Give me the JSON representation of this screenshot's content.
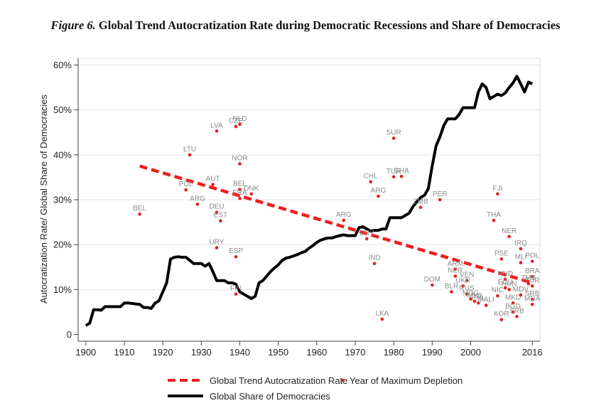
{
  "figure": {
    "number": "Figure 6.",
    "title": "Global Trend Autocratization Rate during Democratic Recessions and Share of Democracies"
  },
  "chart_data": {
    "type": "line",
    "xlabel": "",
    "ylabel": "Autocratization Rate/ Global Share of Democracies",
    "xlim": [
      1898,
      2018
    ],
    "ylim": [
      -1.5,
      61.5
    ],
    "x_ticks": [
      1900,
      1910,
      1920,
      1930,
      1940,
      1950,
      1960,
      1970,
      1980,
      1990,
      2000,
      2016
    ],
    "x_tick_labels": [
      "1900",
      "1910",
      "1920",
      "1930",
      "1940",
      "1950",
      "1960",
      "1970",
      "1980",
      "1990",
      "2000",
      "2016"
    ],
    "y_ticks": [
      0,
      10,
      20,
      30,
      40,
      50,
      60
    ],
    "y_tick_labels": [
      "0",
      "10%",
      "20%",
      "30%",
      "40%",
      "50%",
      "60%"
    ],
    "grid": "horizontal",
    "legend_placement": "bottom",
    "legend": {
      "trend": "Global Trend Autocratization Rate",
      "points": "Year of Maximum Depletion",
      "share": "Global Share of Democracies"
    },
    "colors": {
      "trend": "#ee1d1d",
      "points": "#e02020",
      "share": "#000000",
      "labels": "#8a8a8a"
    },
    "trend": {
      "x": [
        1914,
        2016
      ],
      "y": [
        37.5,
        11.5
      ]
    },
    "share": {
      "x": [
        1900,
        1901,
        1902,
        1903,
        1904,
        1905,
        1906,
        1907,
        1908,
        1909,
        1910,
        1911,
        1912,
        1913,
        1914,
        1915,
        1916,
        1917,
        1918,
        1919,
        1920,
        1921,
        1922,
        1923,
        1924,
        1925,
        1926,
        1927,
        1928,
        1929,
        1930,
        1931,
        1932,
        1933,
        1934,
        1935,
        1936,
        1937,
        1938,
        1939,
        1940,
        1941,
        1942,
        1943,
        1944,
        1945,
        1946,
        1947,
        1948,
        1949,
        1950,
        1951,
        1952,
        1953,
        1954,
        1955,
        1956,
        1957,
        1958,
        1959,
        1960,
        1961,
        1962,
        1963,
        1964,
        1965,
        1966,
        1967,
        1968,
        1969,
        1970,
        1971,
        1972,
        1973,
        1974,
        1975,
        1976,
        1977,
        1978,
        1979,
        1980,
        1981,
        1982,
        1983,
        1984,
        1985,
        1986,
        1987,
        1988,
        1989,
        1990,
        1991,
        1992,
        1993,
        1994,
        1995,
        1996,
        1997,
        1998,
        1999,
        2000,
        2001,
        2002,
        2003,
        2004,
        2005,
        2006,
        2007,
        2008,
        2009,
        2010,
        2011,
        2012,
        2013,
        2014,
        2015,
        2016
      ],
      "y": [
        2,
        2.5,
        5.5,
        5.5,
        5.4,
        6.2,
        6.2,
        6.2,
        6.2,
        6.2,
        7.0,
        7.0,
        6.9,
        6.8,
        6.7,
        6.0,
        6.0,
        5.8,
        7.0,
        7.5,
        9.5,
        11.5,
        16.8,
        17.2,
        17.3,
        17.2,
        17.2,
        16.5,
        15.8,
        15.8,
        15.8,
        15.2,
        15.8,
        14.0,
        12.0,
        12.0,
        12.0,
        11.5,
        11.5,
        11.2,
        9.5,
        9.0,
        8.5,
        8.0,
        8.5,
        11.5,
        12.0,
        13.0,
        14.0,
        14.8,
        15.5,
        16.5,
        17.0,
        17.2,
        17.5,
        17.8,
        18.2,
        18.5,
        19.2,
        19.8,
        20.5,
        21.0,
        21.3,
        21.5,
        21.5,
        21.8,
        22.0,
        22.2,
        22.0,
        22.0,
        22.0,
        23.8,
        24.0,
        23.5,
        23.0,
        23.2,
        23.2,
        23.5,
        23.5,
        26.0,
        26.0,
        26.0,
        26.0,
        26.5,
        27.0,
        28.5,
        29.5,
        30.5,
        31.0,
        32.5,
        37.5,
        42.0,
        44.0,
        46.5,
        48.0,
        48.0,
        48.0,
        49.0,
        50.5,
        50.5,
        50.5,
        50.5,
        54.0,
        55.8,
        55.0,
        52.5,
        53.0,
        53.5,
        53.2,
        53.8,
        55.0,
        56.0,
        57.5,
        55.8,
        54.0,
        56.2,
        55.8
      ]
    },
    "points": [
      {
        "label": "BEL",
        "x": 1914,
        "y": 26.8
      },
      {
        "label": "LTU",
        "x": 1927,
        "y": 40.0
      },
      {
        "label": "POL",
        "x": 1926,
        "y": 32.2
      },
      {
        "label": "ARG",
        "x": 1929,
        "y": 29.0
      },
      {
        "label": "AUT",
        "x": 1933,
        "y": 33.4
      },
      {
        "label": "LVA",
        "x": 1934,
        "y": 45.3
      },
      {
        "label": "DEU",
        "x": 1934,
        "y": 27.2
      },
      {
        "label": "EST",
        "x": 1935,
        "y": 25.3
      },
      {
        "label": "URY",
        "x": 1934,
        "y": 19.3
      },
      {
        "label": "ESP",
        "x": 1939,
        "y": 17.3
      },
      {
        "label": "CZE",
        "x": 1939,
        "y": 46.3
      },
      {
        "label": "NLD",
        "x": 1940,
        "y": 46.8
      },
      {
        "label": "NOR",
        "x": 1940,
        "y": 38.0
      },
      {
        "label": "BEL",
        "x": 1940,
        "y": 32.3
      },
      {
        "label": "FRA",
        "x": 1940,
        "y": 30.3
      },
      {
        "label": "DNK",
        "x": 1943,
        "y": 31.3
      },
      {
        "label": "FIN",
        "x": 1939,
        "y": 9.0
      },
      {
        "label": "ARG",
        "x": 1967,
        "y": 25.4
      },
      {
        "label": "URY",
        "x": 1973,
        "y": 21.3
      },
      {
        "label": "CHL",
        "x": 1974,
        "y": 34.0
      },
      {
        "label": "ARG",
        "x": 1976,
        "y": 30.8
      },
      {
        "label": "IND",
        "x": 1975,
        "y": 15.8
      },
      {
        "label": "SUR",
        "x": 1980,
        "y": 43.7
      },
      {
        "label": "TUR",
        "x": 1980,
        "y": 35.1
      },
      {
        "label": "GHA",
        "x": 1982,
        "y": 35.2
      },
      {
        "label": "LKA",
        "x": 1977,
        "y": 3.4
      },
      {
        "label": "PER",
        "x": 1992,
        "y": 30.0
      },
      {
        "label": "ZMB",
        "x": 1987,
        "y": 28.3
      },
      {
        "label": "DOM",
        "x": 1990,
        "y": 11.0
      },
      {
        "label": "BLR",
        "x": 1995,
        "y": 9.5
      },
      {
        "label": "ARM",
        "x": 1996,
        "y": 14.5
      },
      {
        "label": "NER",
        "x": 1996,
        "y": 13.0
      },
      {
        "label": "VEN",
        "x": 1999,
        "y": 12.0
      },
      {
        "label": "UKR",
        "x": 1998,
        "y": 10.8
      },
      {
        "label": "RUS",
        "x": 1999,
        "y": 9.0
      },
      {
        "label": "MDG",
        "x": 2000,
        "y": 7.9
      },
      {
        "label": "MWI",
        "x": 2001,
        "y": 7.4
      },
      {
        "label": "PHL",
        "x": 2002,
        "y": 7.0
      },
      {
        "label": "MALI",
        "x": 2004,
        "y": 6.5
      },
      {
        "label": "FJI",
        "x": 2007,
        "y": 31.3
      },
      {
        "label": "THA",
        "x": 2006,
        "y": 25.4
      },
      {
        "label": "NER",
        "x": 2010,
        "y": 21.8
      },
      {
        "label": "NIC",
        "x": 2007,
        "y": 8.6
      },
      {
        "label": "KOR",
        "x": 2008,
        "y": 3.3
      },
      {
        "label": "PSE",
        "x": 2008,
        "y": 16.8
      },
      {
        "label": "HND",
        "x": 2009,
        "y": 12.3
      },
      {
        "label": "ECU",
        "x": 2009,
        "y": 10.4
      },
      {
        "label": "HUN",
        "x": 2010,
        "y": 10.0
      },
      {
        "label": "MKD",
        "x": 2011,
        "y": 7.0
      },
      {
        "label": "BGD",
        "x": 2011,
        "y": 5.0
      },
      {
        "label": "SRB",
        "x": 2012,
        "y": 4.0
      },
      {
        "label": "MLI",
        "x": 2013,
        "y": 16.0
      },
      {
        "label": "IRQ",
        "x": 2013,
        "y": 19.1
      },
      {
        "label": "MDV",
        "x": 2013,
        "y": 8.8
      },
      {
        "label": "POL",
        "x": 2016,
        "y": 16.3
      },
      {
        "label": "BRA",
        "x": 2016,
        "y": 12.9
      },
      {
        "label": "ZMB",
        "x": 2015,
        "y": 11.3
      },
      {
        "label": "TUR",
        "x": 2016,
        "y": 10.8
      },
      {
        "label": "SRB",
        "x": 2016,
        "y": 7.8
      },
      {
        "label": "MDA",
        "x": 2016,
        "y": 6.7
      }
    ]
  }
}
